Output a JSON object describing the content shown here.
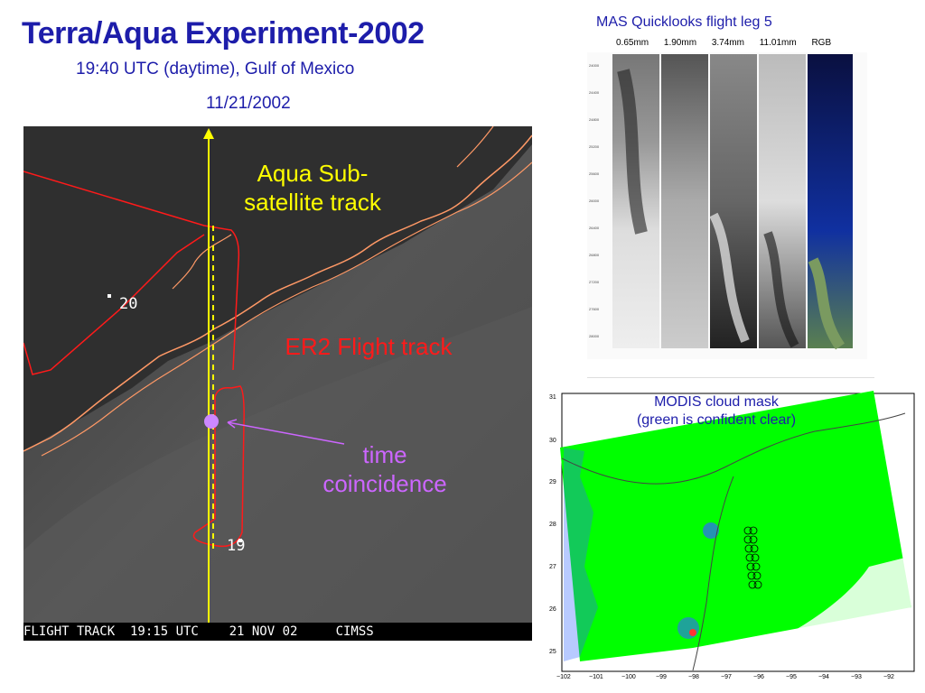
{
  "header": {
    "title": "Terra/Aqua Experiment-2002",
    "subtitle": "19:40 UTC (daytime), Gulf of Mexico",
    "date": "11/21/2002"
  },
  "map": {
    "aqua_label_1": "Aqua Sub-",
    "aqua_label_2": "satellite track",
    "er2_label": "ER2 Flight track",
    "coincidence_label_1": "time",
    "coincidence_label_2": "coincidence",
    "waypoint_20": "20",
    "waypoint_19": "19",
    "status_bar": "FLIGHT TRACK  19:15 UTC    21 NOV 02     CIMSS",
    "colors": {
      "aqua": "#ffff00",
      "er2": "#ff1a1a",
      "coast": "#ff9966",
      "coincidence": "#cc66ff"
    }
  },
  "mas": {
    "title": "MAS Quicklooks flight leg 5",
    "bands": [
      "0.65mm",
      "1.90mm",
      "3.74mm",
      "11.01mm",
      "RGB"
    ]
  },
  "modis": {
    "title_1": "MODIS cloud mask",
    "title_2": "(green is confident clear)",
    "y_ticks": [
      "31",
      "30",
      "29",
      "28",
      "27",
      "26",
      "25"
    ],
    "x_ticks": [
      "−102",
      "−101",
      "−100",
      "−99",
      "−98",
      "−97",
      "−96",
      "−95",
      "−94",
      "−93",
      "−92"
    ],
    "colors": {
      "clear": "#00ff00",
      "cloud": "#3366ff"
    }
  }
}
